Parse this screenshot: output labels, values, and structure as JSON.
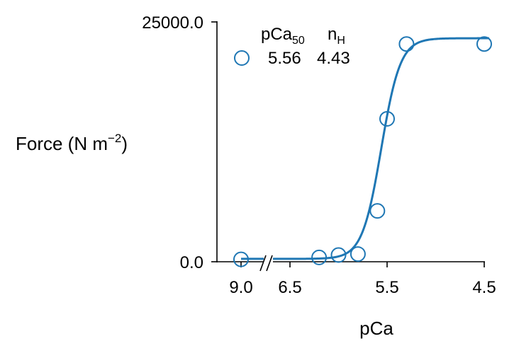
{
  "chart_data": {
    "type": "scatter",
    "xlabel": "pCa",
    "ylabel": {
      "main": "Force (N m",
      "sup": "−2",
      "close": ")"
    },
    "x_ticks": [
      "9.0",
      "6.5",
      "5.5",
      "4.5"
    ],
    "x_axis_break": "between 9.0 and 6.5",
    "x_range_after_break": [
      6.5,
      4.5
    ],
    "ylim": [
      0,
      25000
    ],
    "y_ticks": [
      "0.0",
      "25000.0"
    ],
    "grid": false,
    "legend_position": "top-left",
    "colors": {
      "series": "#1f77b4",
      "axis": "#000000"
    },
    "legend": {
      "header_pca": "pCa",
      "header_pca_sub": "50",
      "header_nh": "n",
      "header_nh_sub": "H",
      "value_pca": "5.56",
      "value_nh": "4.43"
    },
    "fit": {
      "model": "hill",
      "pCa50": 5.56,
      "nH": 4.43,
      "fmin": 300,
      "fmax": 23300
    },
    "points": [
      {
        "pCa": 9.0,
        "force": 250
      },
      {
        "pCa": 6.2,
        "force": 450
      },
      {
        "pCa": 6.0,
        "force": 700
      },
      {
        "pCa": 5.8,
        "force": 800
      },
      {
        "pCa": 5.6,
        "force": 5300
      },
      {
        "pCa": 5.5,
        "force": 14900
      },
      {
        "pCa": 5.3,
        "force": 22700
      },
      {
        "pCa": 4.5,
        "force": 22700
      }
    ]
  }
}
